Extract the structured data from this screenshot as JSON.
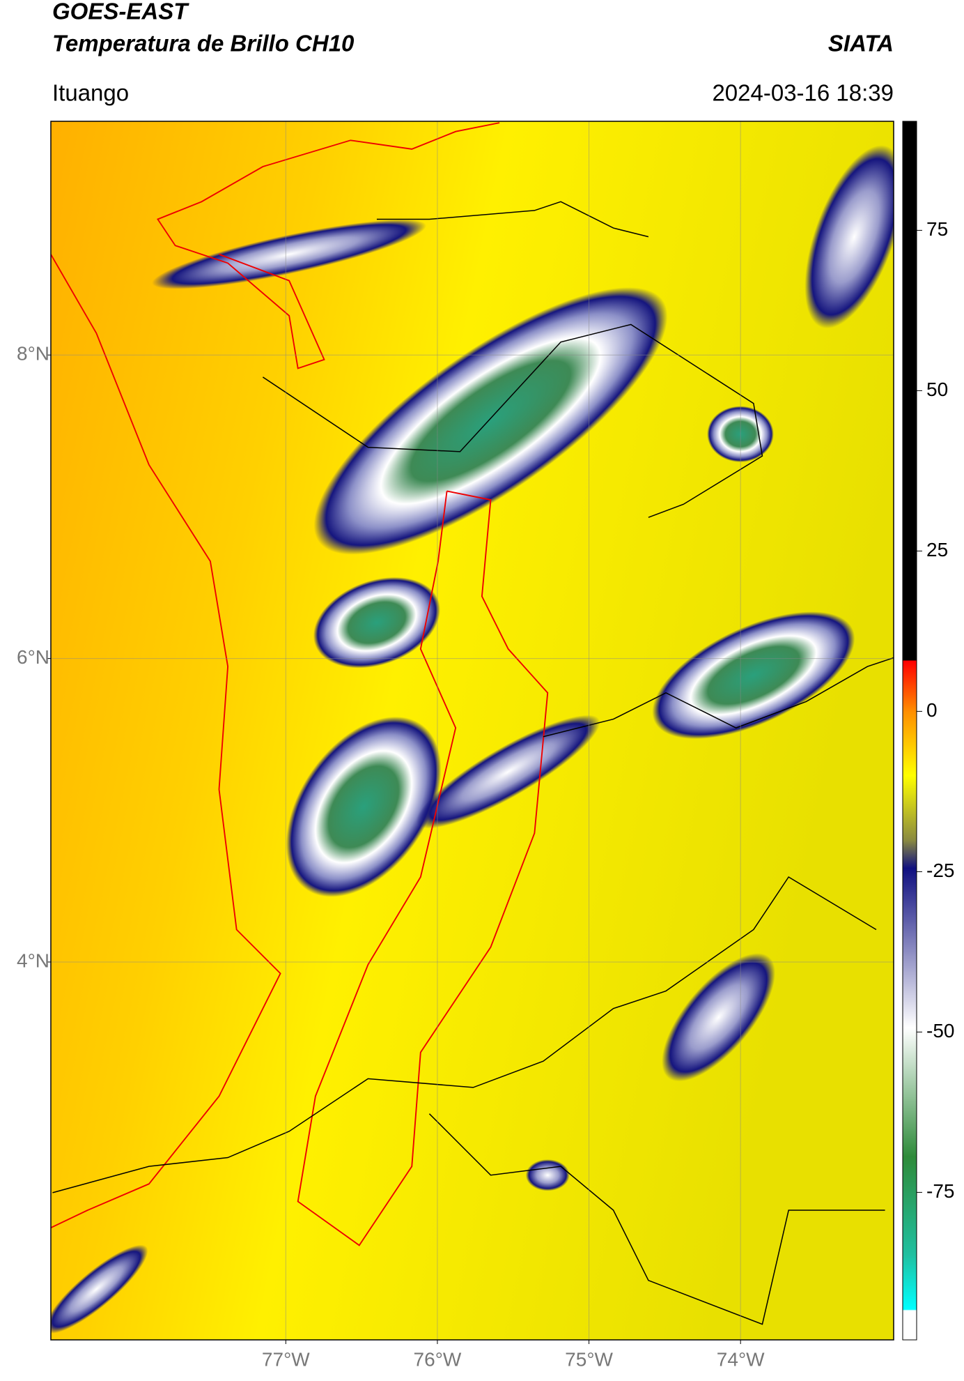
{
  "header": {
    "title": "GOES-EAST",
    "subtitle": "Temperatura de Brillo CH10",
    "brand": "SIATA",
    "location": "Ituango",
    "datetime": "2024-03-16 18:39"
  },
  "map": {
    "xlim": [
      -78.55,
      -72.99
    ],
    "ylim": [
      1.51,
      9.54
    ],
    "xticks": [
      {
        "value": -77,
        "label": "77°W"
      },
      {
        "value": -76,
        "label": "76°W"
      },
      {
        "value": -75,
        "label": "75°W"
      },
      {
        "value": -74,
        "label": "74°W"
      }
    ],
    "yticks": [
      {
        "value": 8,
        "label": "8°N"
      },
      {
        "value": 6,
        "label": "6°N"
      },
      {
        "value": 4,
        "label": "4°N"
      }
    ],
    "grid": true
  },
  "colorbar": {
    "lim": [
      -98,
      92
    ],
    "ticks": [
      75,
      50,
      25,
      0,
      -25,
      -50,
      -75
    ]
  }
}
